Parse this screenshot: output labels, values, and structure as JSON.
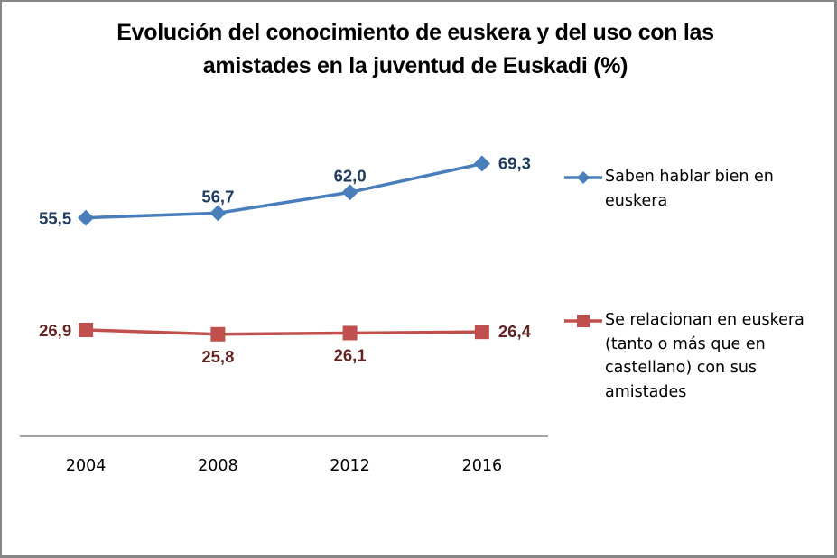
{
  "chart_data": {
    "type": "line",
    "title": "Evolución del conocimiento de euskera y del uso con las amistades en la juventud de Euskadi (%)",
    "title_lines": [
      "Evolución del conocimiento de euskera y del uso con las",
      "amistades en la juventud de Euskadi (%)"
    ],
    "xlabel": "",
    "ylabel": "",
    "categories": [
      "2004",
      "2008",
      "2012",
      "2016"
    ],
    "ylim": [
      0,
      80
    ],
    "grid": false,
    "y_axis_visible": false,
    "legend_position": "right",
    "series": [
      {
        "name": "Saben hablar bien en euskera",
        "legend_lines": [
          "Saben hablar bien en",
          "euskera"
        ],
        "values": [
          55.5,
          56.7,
          62.0,
          69.3
        ],
        "labels": [
          "55,5",
          "56,7",
          "62,0",
          "69,3"
        ],
        "label_positions": [
          "left",
          "above",
          "above",
          "right"
        ],
        "marker": "diamond",
        "color": "#4a7ebb",
        "label_color": "#1f3a5f"
      },
      {
        "name": "Se relacionan en euskera (tanto o más que en castellano) con sus amistades",
        "legend_lines": [
          "Se relacionan en euskera",
          "(tanto o más que en",
          "castellano) con sus",
          "amistades"
        ],
        "values": [
          26.9,
          25.8,
          26.1,
          26.4
        ],
        "labels": [
          "26,9",
          "25,8",
          "26,1",
          "26,4"
        ],
        "label_positions": [
          "left",
          "below",
          "below",
          "right"
        ],
        "marker": "square",
        "color": "#c0504d",
        "label_color": "#632523"
      }
    ]
  }
}
